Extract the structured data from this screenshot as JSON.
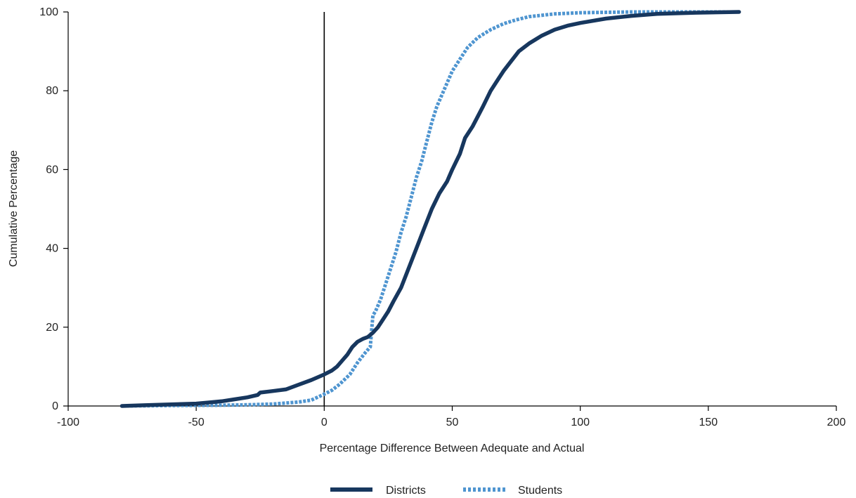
{
  "colors": {
    "districts": "#17375e",
    "students": "#4f95d0",
    "axis": "#000000",
    "text": "#222222"
  },
  "chart_data": {
    "type": "line",
    "title": "",
    "xlabel": "Percentage Difference Between Adequate and Actual",
    "ylabel": "Cumulative Percentage",
    "xlim": [
      -100,
      200
    ],
    "ylim": [
      0,
      100
    ],
    "x_ticks": [
      -100,
      -50,
      0,
      50,
      100,
      150,
      200
    ],
    "y_ticks": [
      0,
      20,
      40,
      60,
      80,
      100
    ],
    "x_tick_labels": [
      "-100",
      "-50",
      "0",
      "50",
      "100",
      "150",
      "200"
    ],
    "y_tick_labels": [
      "0",
      "20",
      "40",
      "60",
      "80",
      "100"
    ],
    "grid": false,
    "reference_line_x": 0,
    "legend_position": "bottom-center",
    "series": [
      {
        "name": "Districts",
        "style": "solid",
        "color": "#17375e",
        "points": [
          [
            -79,
            0
          ],
          [
            -70,
            0.2
          ],
          [
            -60,
            0.4
          ],
          [
            -50,
            0.6
          ],
          [
            -45,
            0.9
          ],
          [
            -40,
            1.2
          ],
          [
            -35,
            1.7
          ],
          [
            -30,
            2.2
          ],
          [
            -26,
            2.8
          ],
          [
            -25,
            3.4
          ],
          [
            -20,
            3.8
          ],
          [
            -15,
            4.2
          ],
          [
            -10,
            5.4
          ],
          [
            -5,
            6.6
          ],
          [
            0,
            8
          ],
          [
            3,
            9
          ],
          [
            5,
            10
          ],
          [
            7,
            11.5
          ],
          [
            9,
            13
          ],
          [
            11,
            15
          ],
          [
            13,
            16.3
          ],
          [
            15,
            17
          ],
          [
            17,
            17.5
          ],
          [
            19,
            18.6
          ],
          [
            21,
            20
          ],
          [
            23,
            22
          ],
          [
            25,
            24
          ],
          [
            27,
            26.5
          ],
          [
            30,
            30
          ],
          [
            33,
            35
          ],
          [
            36,
            40
          ],
          [
            39,
            45
          ],
          [
            42,
            50
          ],
          [
            45,
            54
          ],
          [
            48,
            57
          ],
          [
            50,
            60
          ],
          [
            53,
            64
          ],
          [
            55,
            68
          ],
          [
            58,
            71
          ],
          [
            60,
            73.5
          ],
          [
            62,
            76
          ],
          [
            65,
            80
          ],
          [
            68,
            83
          ],
          [
            70,
            85
          ],
          [
            73,
            87.5
          ],
          [
            76,
            90
          ],
          [
            80,
            92
          ],
          [
            85,
            94
          ],
          [
            90,
            95.5
          ],
          [
            95,
            96.5
          ],
          [
            100,
            97.2
          ],
          [
            110,
            98.3
          ],
          [
            120,
            99
          ],
          [
            130,
            99.5
          ],
          [
            145,
            99.8
          ],
          [
            162,
            100
          ]
        ]
      },
      {
        "name": "Students",
        "style": "dashed",
        "color": "#4f95d0",
        "points": [
          [
            -79,
            0
          ],
          [
            -60,
            0.1
          ],
          [
            -40,
            0.2
          ],
          [
            -30,
            0.3
          ],
          [
            -20,
            0.5
          ],
          [
            -10,
            1
          ],
          [
            -5,
            1.5
          ],
          [
            0,
            3
          ],
          [
            3,
            4
          ],
          [
            6,
            5.5
          ],
          [
            10,
            8
          ],
          [
            13,
            11
          ],
          [
            16,
            13.5
          ],
          [
            18,
            15
          ],
          [
            18.5,
            19
          ],
          [
            19,
            23
          ],
          [
            20,
            24
          ],
          [
            22,
            27
          ],
          [
            25,
            33
          ],
          [
            28,
            39
          ],
          [
            30,
            44
          ],
          [
            32,
            48
          ],
          [
            34,
            53
          ],
          [
            36,
            58
          ],
          [
            38,
            62
          ],
          [
            40,
            67
          ],
          [
            42,
            72
          ],
          [
            44,
            76
          ],
          [
            46,
            79
          ],
          [
            48,
            82
          ],
          [
            50,
            85
          ],
          [
            53,
            88
          ],
          [
            56,
            91
          ],
          [
            60,
            93.5
          ],
          [
            65,
            95.5
          ],
          [
            70,
            97
          ],
          [
            75,
            98
          ],
          [
            80,
            98.8
          ],
          [
            90,
            99.5
          ],
          [
            100,
            99.8
          ],
          [
            120,
            100
          ],
          [
            162,
            100
          ]
        ]
      }
    ]
  }
}
